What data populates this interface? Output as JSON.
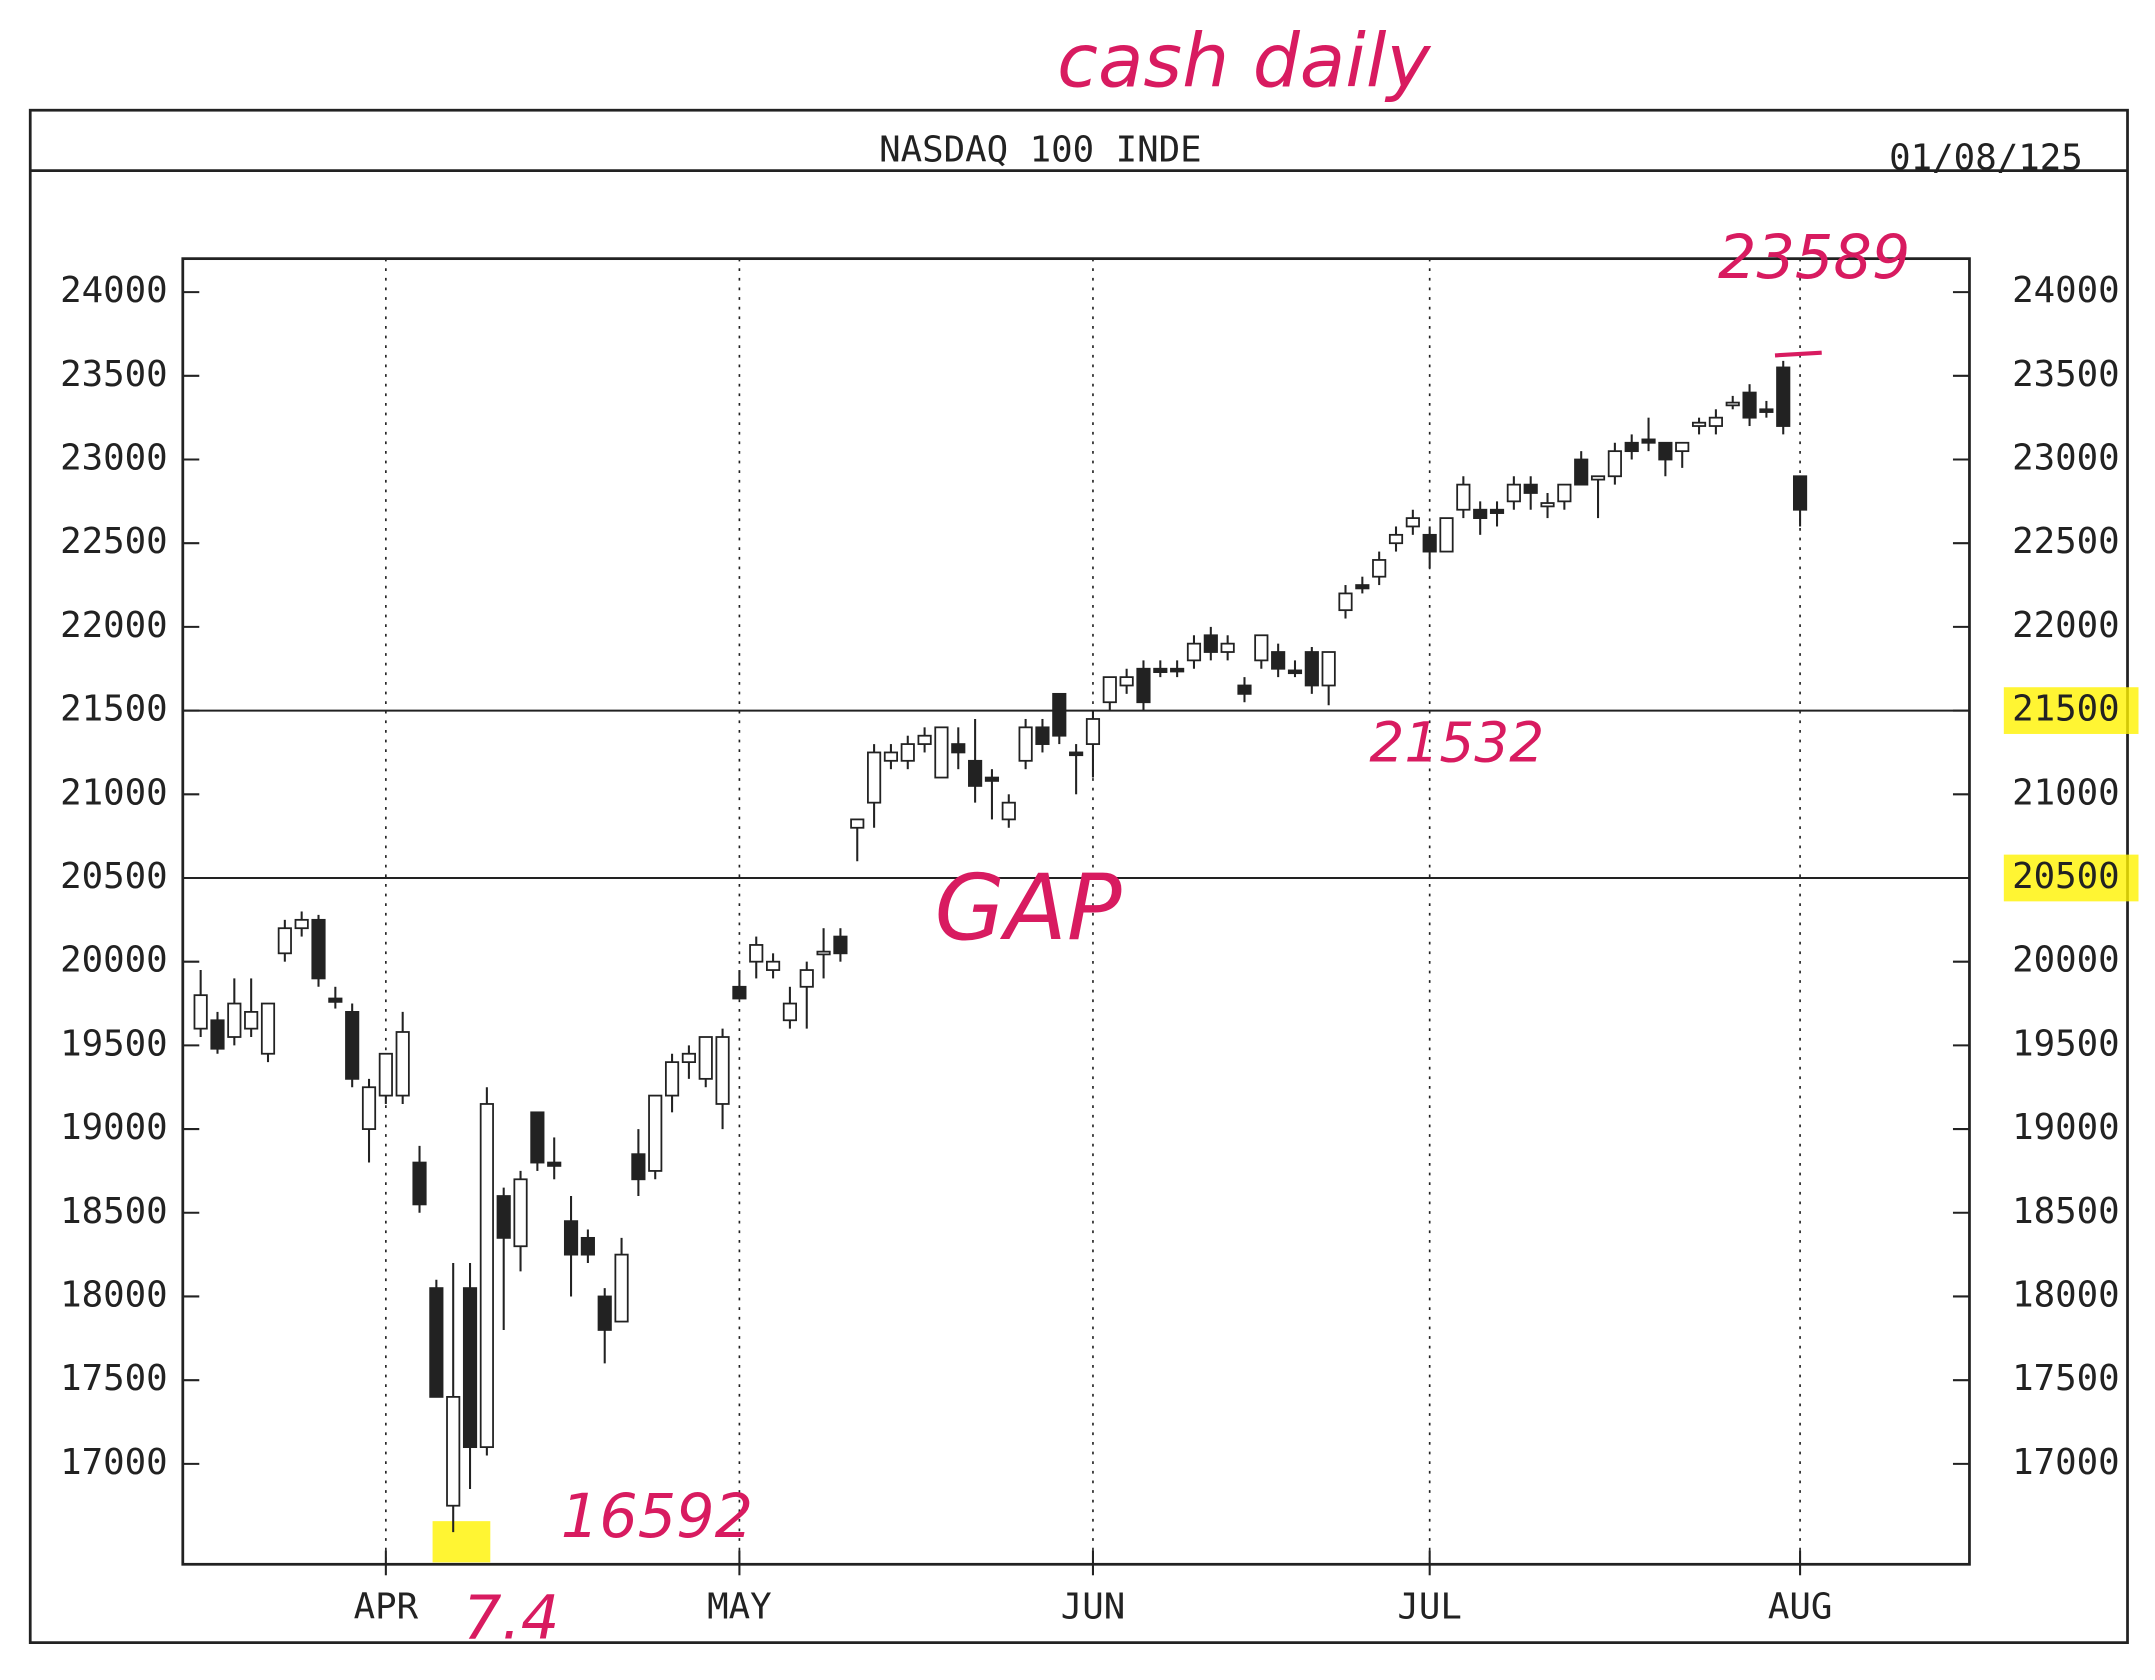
{
  "header": {
    "title": "NASDAQ 100 INDE",
    "date": "01/08/125"
  },
  "chart_data": {
    "type": "candlestick",
    "categories": [
      null,
      null,
      null,
      null,
      null,
      null,
      null,
      null,
      null,
      null,
      null,
      "APR",
      null,
      null,
      null,
      null,
      null,
      null,
      null,
      null,
      null,
      null,
      null,
      null,
      null,
      null,
      null,
      null,
      null,
      null,
      null,
      null,
      "MAY",
      null,
      null,
      null,
      null,
      null,
      null,
      null,
      null,
      null,
      null,
      null,
      null,
      null,
      null,
      null,
      null,
      null,
      null,
      null,
      null,
      "JUN",
      null,
      null,
      null,
      null,
      null,
      null,
      null,
      null,
      null,
      null,
      null,
      null,
      null,
      null,
      null,
      null,
      null,
      null,
      null,
      "JUL",
      null,
      null,
      null,
      null,
      null,
      null,
      null,
      null,
      null,
      null,
      null,
      null,
      null,
      null,
      null,
      null,
      null,
      null,
      null,
      null,
      null,
      "AUG"
    ],
    "series": [
      {
        "open": [
          19600,
          19650,
          19550,
          19600,
          19450,
          20050,
          20200,
          20250,
          19780,
          19700,
          19000,
          19200,
          19200,
          18800,
          18050,
          16750,
          18050,
          17100,
          18600,
          18300,
          19100,
          18800,
          18450,
          18350,
          18000,
          17850,
          18850,
          18750,
          19200,
          19400,
          19300,
          19150,
          19850,
          20000,
          19950,
          19650,
          19850,
          20050,
          20150,
          20800,
          20950,
          21200,
          21200,
          21300,
          21100,
          21300,
          21200,
          21100,
          20850,
          21200,
          21400,
          21600,
          21250,
          21300,
          21550,
          21650,
          21750,
          21750,
          21750,
          21800,
          21950,
          21850,
          21650,
          21800,
          21850,
          21740,
          21850,
          21650,
          22100,
          22250,
          22300,
          22500,
          22600,
          22550,
          22450,
          22700,
          22700,
          22700,
          22750,
          22850,
          22720,
          22750,
          23000,
          22880,
          22900,
          23100,
          23120,
          23100,
          23050,
          23200,
          23200,
          23330,
          23400,
          23300,
          23550,
          22900
        ],
        "high": [
          19950,
          19700,
          19900,
          19900,
          19750,
          20250,
          20300,
          20280,
          19850,
          19750,
          19300,
          19450,
          19700,
          18900,
          18100,
          18200,
          18200,
          19250,
          18650,
          18750,
          19100,
          18950,
          18600,
          18400,
          18050,
          18350,
          19000,
          19200,
          19450,
          19500,
          19550,
          19600,
          19950,
          20150,
          20050,
          19850,
          20000,
          20200,
          20200,
          20850,
          21300,
          21300,
          21350,
          21400,
          21400,
          21400,
          21450,
          21150,
          21000,
          21450,
          21450,
          21600,
          21300,
          21500,
          21700,
          21750,
          21800,
          21800,
          21800,
          21950,
          22000,
          21950,
          21700,
          21950,
          21900,
          21800,
          21880,
          21850,
          22250,
          22300,
          22450,
          22600,
          22700,
          22600,
          22650,
          22900,
          22750,
          22750,
          22900,
          22900,
          22800,
          22850,
          23050,
          22900,
          23100,
          23150,
          23250,
          23100,
          23100,
          23250,
          23300,
          23380,
          23450,
          23350,
          23589,
          22900
        ],
        "low": [
          19550,
          19450,
          19500,
          19550,
          19400,
          20000,
          20150,
          19850,
          19720,
          19250,
          18800,
          19150,
          19150,
          18500,
          17400,
          16592,
          16850,
          17050,
          17800,
          18150,
          18750,
          18700,
          18000,
          18200,
          17600,
          17850,
          18600,
          18700,
          19100,
          19300,
          19250,
          19000,
          19780,
          19900,
          19900,
          19600,
          19600,
          19900,
          20000,
          20600,
          20800,
          21150,
          21150,
          21250,
          21100,
          21150,
          20950,
          20850,
          20800,
          21150,
          21250,
          21300,
          21000,
          21100,
          21500,
          21600,
          21500,
          21700,
          21700,
          21750,
          21800,
          21800,
          21550,
          21750,
          21700,
          21700,
          21600,
          21532,
          22050,
          22200,
          22250,
          22450,
          22550,
          22350,
          22450,
          22650,
          22550,
          22600,
          22700,
          22700,
          22650,
          22700,
          22850,
          22650,
          22850,
          23000,
          23050,
          22900,
          22950,
          23150,
          23150,
          23300,
          23200,
          23250,
          23150,
          22600
        ],
        "close": [
          19800,
          19480,
          19750,
          19700,
          19750,
          20200,
          20250,
          19900,
          19760,
          19300,
          19250,
          19450,
          19580,
          18550,
          17400,
          17400,
          17100,
          19150,
          18350,
          18700,
          18800,
          18780,
          18250,
          18250,
          17800,
          18250,
          18700,
          19200,
          19400,
          19450,
          19550,
          19550,
          19780,
          20100,
          20000,
          19750,
          19950,
          20060,
          20050,
          20850,
          21250,
          21250,
          21300,
          21350,
          21400,
          21250,
          21050,
          21080,
          20950,
          21400,
          21300,
          21350,
          21240,
          21450,
          21700,
          21700,
          21550,
          21730,
          21740,
          21900,
          21850,
          21900,
          21600,
          21950,
          21750,
          21730,
          21650,
          21850,
          22200,
          22230,
          22400,
          22550,
          22650,
          22450,
          22650,
          22850,
          22650,
          22680,
          22850,
          22800,
          22740,
          22850,
          22850,
          22900,
          23050,
          23050,
          23100,
          23000,
          23100,
          23220,
          23250,
          23340,
          23250,
          23290,
          23200,
          22700
        ]
      }
    ],
    "ylim": [
      16400,
      24200
    ],
    "yticks": [
      17000,
      17500,
      18000,
      18500,
      19000,
      19500,
      20000,
      20500,
      21000,
      21500,
      22000,
      22500,
      23000,
      23500,
      24000
    ],
    "hlines": [
      21500,
      20500
    ],
    "annotations": [
      "cash daily",
      "23589",
      "21532",
      "GAP",
      "16592",
      "7.4"
    ]
  }
}
